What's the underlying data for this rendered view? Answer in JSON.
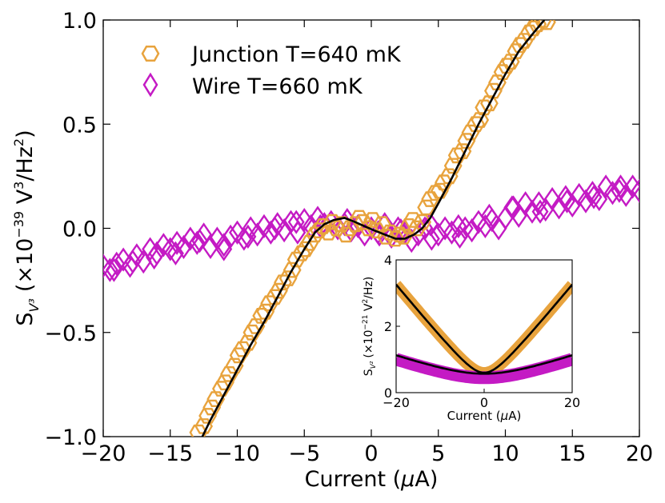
{
  "chart_data": [
    {
      "type": "scatter",
      "title": "",
      "xlabel": "Current (μA)",
      "ylabel": "S_V³ (×10⁻³⁹ V³/Hz²)",
      "ylabel_parts": {
        "s": "S",
        "sub": "V³",
        "prefix": "(×10",
        "exp": "−39",
        "unit": " V",
        "unit_exp": "3",
        "unit_tail": "/Hz",
        "tail_exp": "2",
        "close": ")"
      },
      "xlim": [
        -20,
        20
      ],
      "ylim": [
        -1.0,
        1.0
      ],
      "xticks": [
        -20,
        -15,
        -10,
        -5,
        0,
        5,
        10,
        15,
        20
      ],
      "xtick_labels": [
        "−20",
        "−15",
        "−10",
        "−5",
        "0",
        "5",
        "10",
        "15",
        "20"
      ],
      "yticks": [
        -1.0,
        -0.5,
        0.0,
        0.5,
        1.0
      ],
      "ytick_labels": [
        "−1.0",
        "−0.5",
        "0.0",
        "0.5",
        "1.0"
      ],
      "legend": {
        "position": "top-left",
        "entries": [
          {
            "label": "Junction T=640 mK",
            "marker": "hexagon",
            "color": "#E8A33D"
          },
          {
            "label": "Wire T=660 mK",
            "marker": "diamond",
            "color": "#C41AC4"
          }
        ]
      },
      "series": [
        {
          "name": "Junction T=640 mK",
          "marker": "hexagon",
          "color": "#E8A33D",
          "x": [
            -12.9,
            -12.5,
            -12.2,
            -11.9,
            -11.6,
            -11.2,
            -10.9,
            -10.6,
            -10.2,
            -9.9,
            -9.6,
            -9.2,
            -8.9,
            -8.6,
            -8.2,
            -7.9,
            -7.6,
            -7.2,
            -6.9,
            -6.6,
            -6.2,
            -5.9,
            -5.6,
            -5.2,
            -4.9,
            -4.6,
            -4.2,
            -3.9,
            -3.6,
            -3.2,
            -2.9,
            -2.6,
            -2.2,
            -1.9,
            -1.6,
            -1.2,
            -0.9,
            -0.6,
            -0.2,
            0.1,
            0.4,
            0.8,
            1.1,
            1.4,
            1.8,
            2.1,
            2.4,
            2.8,
            3.1,
            3.4,
            3.8,
            4.1,
            4.4,
            4.8,
            5.1,
            5.4,
            5.8,
            6.1,
            6.4,
            6.8,
            7.1,
            7.4,
            7.8,
            8.1,
            8.4,
            8.8,
            9.1,
            9.4,
            9.8,
            10.1,
            10.4,
            10.8,
            11.1,
            11.4,
            11.8,
            12.1,
            12.4,
            12.8,
            13.1
          ],
          "y": [
            -0.98,
            -0.95,
            -0.9,
            -0.86,
            -0.82,
            -0.77,
            -0.74,
            -0.7,
            -0.66,
            -0.61,
            -0.58,
            -0.55,
            -0.5,
            -0.47,
            -0.42,
            -0.4,
            -0.36,
            -0.33,
            -0.3,
            -0.26,
            -0.24,
            -0.2,
            -0.15,
            -0.12,
            -0.1,
            -0.07,
            -0.03,
            -0.01,
            0.01,
            -0.02,
            0.03,
            0.0,
            0.02,
            -0.03,
            0.0,
            0.02,
            0.05,
            0.03,
            0.0,
            0.04,
            -0.01,
            0.02,
            -0.04,
            -0.02,
            -0.05,
            -0.03,
            -0.04,
            0.01,
            0.04,
            0.0,
            0.03,
            0.1,
            0.14,
            0.17,
            0.18,
            0.22,
            0.25,
            0.3,
            0.35,
            0.37,
            0.42,
            0.46,
            0.5,
            0.52,
            0.58,
            0.6,
            0.66,
            0.7,
            0.75,
            0.78,
            0.8,
            0.85,
            0.88,
            0.9,
            0.94,
            0.96,
            0.98,
            1.0,
            0.99
          ]
        },
        {
          "name": "Wire T=660 mK",
          "marker": "diamond",
          "color": "#C41AC4",
          "x": [
            -20.0,
            -19.5,
            -19.0,
            -18.5,
            -18.0,
            -17.5,
            -17.0,
            -16.5,
            -16.0,
            -15.5,
            -15.0,
            -14.5,
            -14.0,
            -13.5,
            -13.0,
            -12.5,
            -12.0,
            -11.5,
            -11.0,
            -10.5,
            -10.0,
            -9.5,
            -9.0,
            -8.5,
            -8.0,
            -7.5,
            -7.0,
            -6.5,
            -6.0,
            -5.5,
            -5.0,
            -4.5,
            -4.0,
            -3.5,
            -3.0,
            -2.5,
            -2.0,
            -1.5,
            -1.0,
            -0.5,
            0.0,
            0.5,
            1.0,
            1.5,
            2.0,
            2.5,
            3.0,
            3.5,
            4.0,
            4.5,
            5.0,
            5.5,
            6.0,
            6.5,
            7.0,
            7.5,
            8.0,
            8.5,
            9.0,
            9.5,
            10.0,
            10.5,
            11.0,
            11.5,
            12.0,
            12.5,
            13.0,
            13.5,
            14.0,
            14.5,
            15.0,
            15.5,
            16.0,
            16.5,
            17.0,
            17.5,
            18.0,
            18.5,
            19.0,
            19.5,
            20.0,
            -19.2,
            -17.8,
            -16.2,
            -14.6,
            -12.8,
            -11.0,
            -9.2,
            -7.2,
            -5.6,
            -3.8,
            -1.8,
            0.6,
            2.2,
            4.4,
            6.6,
            8.8,
            10.6,
            12.6,
            14.6,
            16.6,
            18.6
          ],
          "y": [
            -0.18,
            -0.2,
            -0.17,
            -0.15,
            -0.18,
            -0.13,
            -0.16,
            -0.1,
            -0.12,
            -0.08,
            -0.1,
            -0.07,
            -0.09,
            -0.05,
            -0.07,
            -0.03,
            -0.09,
            -0.05,
            -0.08,
            -0.04,
            -0.02,
            -0.05,
            0.0,
            -0.03,
            0.01,
            -0.02,
            0.02,
            -0.01,
            0.03,
            -0.02,
            0.04,
            0.01,
            0.05,
            0.02,
            0.03,
            0.0,
            0.02,
            -0.01,
            0.01,
            -0.03,
            0.0,
            -0.02,
            0.02,
            -0.04,
            0.0,
            -0.02,
            -0.06,
            -0.03,
            0.0,
            -0.05,
            -0.03,
            0.0,
            -0.02,
            0.01,
            0.0,
            -0.01,
            0.03,
            0.01,
            0.04,
            0.0,
            0.05,
            0.1,
            0.06,
            0.12,
            0.08,
            0.12,
            0.09,
            0.14,
            0.1,
            0.15,
            0.11,
            0.16,
            0.13,
            0.17,
            0.14,
            0.2,
            0.17,
            0.18,
            0.16,
            0.2,
            0.18,
            -0.2,
            -0.16,
            -0.14,
            -0.12,
            -0.06,
            -0.1,
            -0.04,
            0.0,
            0.03,
            0.01,
            0.04,
            -0.03,
            -0.01,
            0.02,
            -0.04,
            0.06,
            0.1,
            0.08,
            0.13,
            0.15,
            0.2
          ]
        },
        {
          "name": "Junction fit",
          "type": "line",
          "color": "#000000",
          "x": [
            -12.6,
            -12,
            -11,
            -10,
            -9,
            -8,
            -7,
            -6,
            -5,
            -4.2,
            -3.5,
            -2.8,
            -2.0,
            -1.2,
            -0.5,
            0.2,
            1.0,
            1.8,
            2.5,
            3.2,
            3.8,
            4.4,
            5,
            6,
            7,
            8,
            9,
            10,
            11,
            12,
            12.9
          ],
          "y": [
            -1.0,
            -0.92,
            -0.8,
            -0.68,
            -0.56,
            -0.45,
            -0.33,
            -0.21,
            -0.1,
            -0.02,
            0.02,
            0.04,
            0.05,
            0.03,
            0.01,
            -0.01,
            -0.03,
            -0.05,
            -0.05,
            -0.03,
            0.0,
            0.05,
            0.12,
            0.24,
            0.37,
            0.5,
            0.62,
            0.74,
            0.85,
            0.93,
            1.0
          ]
        }
      ]
    },
    {
      "type": "scatter",
      "title": "",
      "xlabel": "Current (μA)",
      "ylabel": "S_V² (×10⁻²¹ V²/Hz)",
      "ylabel_parts": {
        "s": "S",
        "sub": "V²",
        "prefix": "(×10",
        "exp": "−21",
        "unit": " V",
        "unit_exp": "2",
        "unit_tail": "/Hz)"
      },
      "xlim": [
        -20,
        20
      ],
      "ylim": [
        0,
        4
      ],
      "xticks": [
        -20,
        0,
        20
      ],
      "xtick_labels": [
        "−20",
        "0",
        "20"
      ],
      "yticks": [
        0,
        2,
        4
      ],
      "ytick_labels": [
        "0",
        "2",
        "4"
      ],
      "series": [
        {
          "name": "Junction T=640 mK",
          "color": "#E8A33D",
          "model": {
            "a": 0.6,
            "b": 0.16
          }
        },
        {
          "name": "Wire T=660 mK",
          "color": "#C41AC4",
          "model": {
            "a": 0.45,
            "b": 0.045
          }
        }
      ]
    }
  ]
}
